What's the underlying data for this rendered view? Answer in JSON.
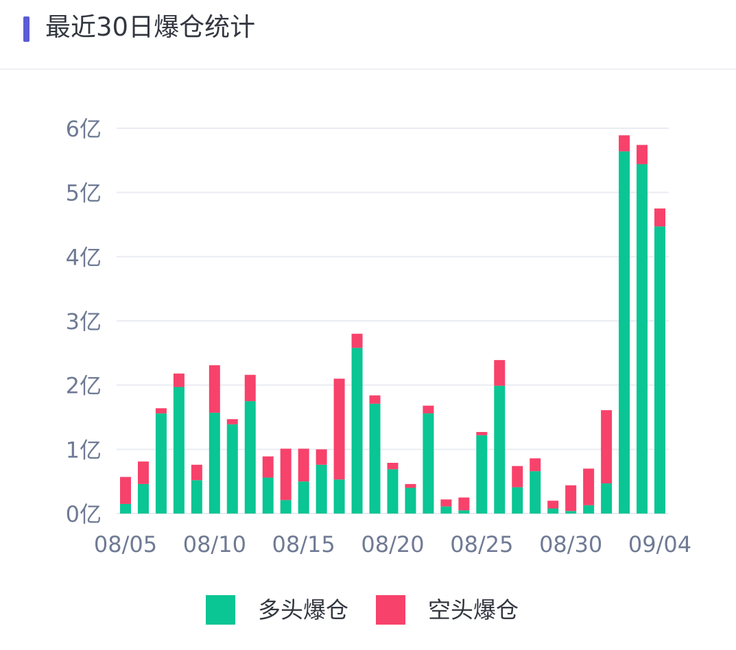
{
  "header": {
    "title": "最近30日爆仓统计"
  },
  "colors": {
    "accent": "#5b5bd6",
    "long": "#0ac594",
    "short": "#f7426b",
    "axis_text": "#6f7a94",
    "grid": "#e9ecf2"
  },
  "legend": [
    {
      "label": "多头爆仓",
      "color": "#0ac594"
    },
    {
      "label": "空头爆仓",
      "color": "#f7426b"
    }
  ],
  "chart_data": {
    "type": "bar",
    "stacked": true,
    "unit_suffix": "亿",
    "categories": [
      "08/05",
      "08/06",
      "08/07",
      "08/08",
      "08/09",
      "08/10",
      "08/11",
      "08/12",
      "08/13",
      "08/14",
      "08/15",
      "08/16",
      "08/17",
      "08/18",
      "08/19",
      "08/20",
      "08/21",
      "08/22",
      "08/23",
      "08/24",
      "08/25",
      "08/26",
      "08/27",
      "08/28",
      "08/29",
      "08/30",
      "08/31",
      "09/01",
      "09/02",
      "09/03",
      "09/04"
    ],
    "x_tick_labels": [
      "08/05",
      "08/10",
      "08/15",
      "08/20",
      "08/25",
      "08/30",
      "09/04"
    ],
    "y_ticks": [
      0,
      1,
      2,
      3,
      4,
      5,
      6
    ],
    "y_tick_labels": [
      "0亿",
      "1亿",
      "2亿",
      "3亿",
      "4亿",
      "5亿",
      "6亿"
    ],
    "ylim": [
      0,
      6
    ],
    "grid": true,
    "legend_position": "bottom",
    "series": [
      {
        "name": "多头爆仓",
        "values": [
          0.15,
          0.46,
          1.56,
          1.97,
          0.52,
          1.57,
          1.39,
          1.75,
          0.56,
          0.21,
          0.5,
          0.76,
          0.53,
          2.58,
          1.71,
          0.69,
          0.4,
          1.56,
          0.11,
          0.05,
          1.22,
          1.99,
          0.41,
          0.66,
          0.08,
          0.04,
          0.13,
          0.47,
          5.64,
          5.44,
          4.47
        ]
      },
      {
        "name": "空头爆仓",
        "values": [
          0.42,
          0.35,
          0.08,
          0.21,
          0.24,
          0.74,
          0.08,
          0.41,
          0.33,
          0.8,
          0.51,
          0.24,
          1.57,
          0.22,
          0.13,
          0.1,
          0.06,
          0.12,
          0.11,
          0.2,
          0.05,
          0.4,
          0.33,
          0.2,
          0.12,
          0.4,
          0.57,
          1.14,
          0.25,
          0.3,
          0.28
        ]
      }
    ]
  }
}
